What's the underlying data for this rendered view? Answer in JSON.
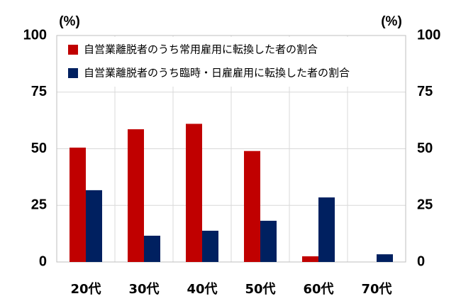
{
  "chart_data": {
    "type": "bar",
    "ylabel": "(%)",
    "y2label": "(%)",
    "categories": [
      "20代",
      "30代",
      "40代",
      "50代",
      "60代",
      "70代"
    ],
    "series": [
      {
        "name": "自営業離脱者のうち常用雇用に転換した者の割合",
        "color": "#c00000",
        "values": [
          50.5,
          58.6,
          61,
          49,
          2.5,
          0
        ]
      },
      {
        "name": "自営業離脱者のうち臨時・日雇雇用に転換した者の割合",
        "color": "#002060",
        "values": [
          31.7,
          11.6,
          13.8,
          18.2,
          28.5,
          3.4
        ]
      }
    ],
    "ylim": [
      0,
      100
    ],
    "yticks": [
      0,
      25,
      50,
      75,
      100
    ],
    "y2lim": [
      0,
      100
    ],
    "y2ticks": [
      0,
      25,
      50,
      75,
      100
    ],
    "grid": true
  }
}
